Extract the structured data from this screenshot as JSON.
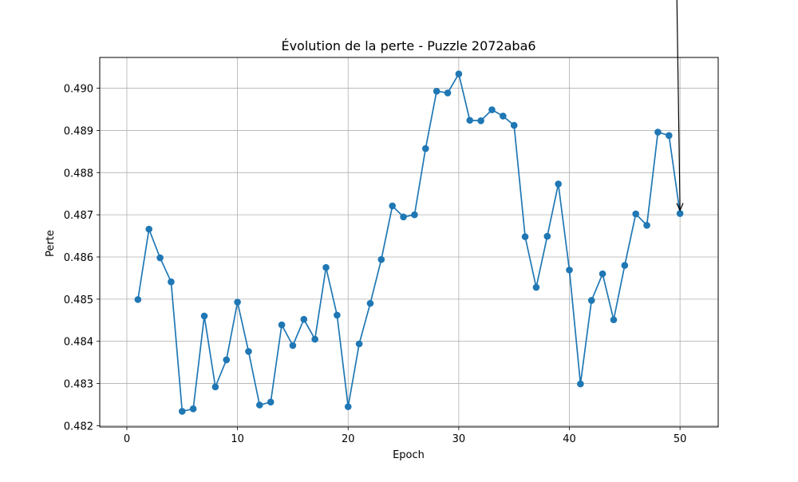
{
  "chart_data": {
    "type": "line",
    "title": "Évolution de la perte - Puzzle 2072aba6",
    "xlabel": "Epoch",
    "ylabel": "Perte",
    "xlim": [
      -2.45,
      53.45
    ],
    "ylim": [
      0.48197,
      0.49073
    ],
    "xticks": [
      0,
      10,
      20,
      30,
      40,
      50
    ],
    "yticks": [
      0.482,
      0.483,
      0.484,
      0.485,
      0.486,
      0.487,
      0.488,
      0.489,
      0.49
    ],
    "xtick_labels": [
      "0",
      "10",
      "20",
      "30",
      "40",
      "50"
    ],
    "ytick_labels": [
      "0.482",
      "0.483",
      "0.484",
      "0.485",
      "0.486",
      "0.487",
      "0.488",
      "0.489",
      "0.490"
    ],
    "grid": true,
    "series": [
      {
        "color": "#1f77b4",
        "marker": "circle",
        "x": [
          1,
          2,
          3,
          4,
          5,
          6,
          7,
          8,
          9,
          10,
          11,
          12,
          13,
          14,
          15,
          16,
          17,
          18,
          19,
          20,
          21,
          22,
          23,
          24,
          25,
          26,
          27,
          28,
          29,
          30,
          31,
          32,
          33,
          34,
          35,
          36,
          37,
          38,
          39,
          40,
          41,
          42,
          43,
          44,
          45,
          46,
          47,
          48,
          49,
          50
        ],
        "y": [
          0.48499,
          0.48666,
          0.48598,
          0.48541,
          0.48234,
          0.4824,
          0.4846,
          0.48292,
          0.48356,
          0.48493,
          0.48376,
          0.48249,
          0.48256,
          0.48439,
          0.4839,
          0.48452,
          0.48405,
          0.48575,
          0.48462,
          0.48245,
          0.48394,
          0.4849,
          0.48594,
          0.48721,
          0.48695,
          0.487,
          0.48857,
          0.48993,
          0.48989,
          0.49034,
          0.48924,
          0.48923,
          0.48949,
          0.48934,
          0.48912,
          0.48648,
          0.48528,
          0.48649,
          0.48773,
          0.48569,
          0.48299,
          0.48497,
          0.4856,
          0.48451,
          0.4858,
          0.48702,
          0.48675,
          0.48896,
          0.48888,
          0.48703
        ]
      }
    ],
    "annotation": {
      "type": "arrow",
      "text": "",
      "target_x": 50,
      "target_y": 0.48703,
      "color": "#000000"
    }
  }
}
